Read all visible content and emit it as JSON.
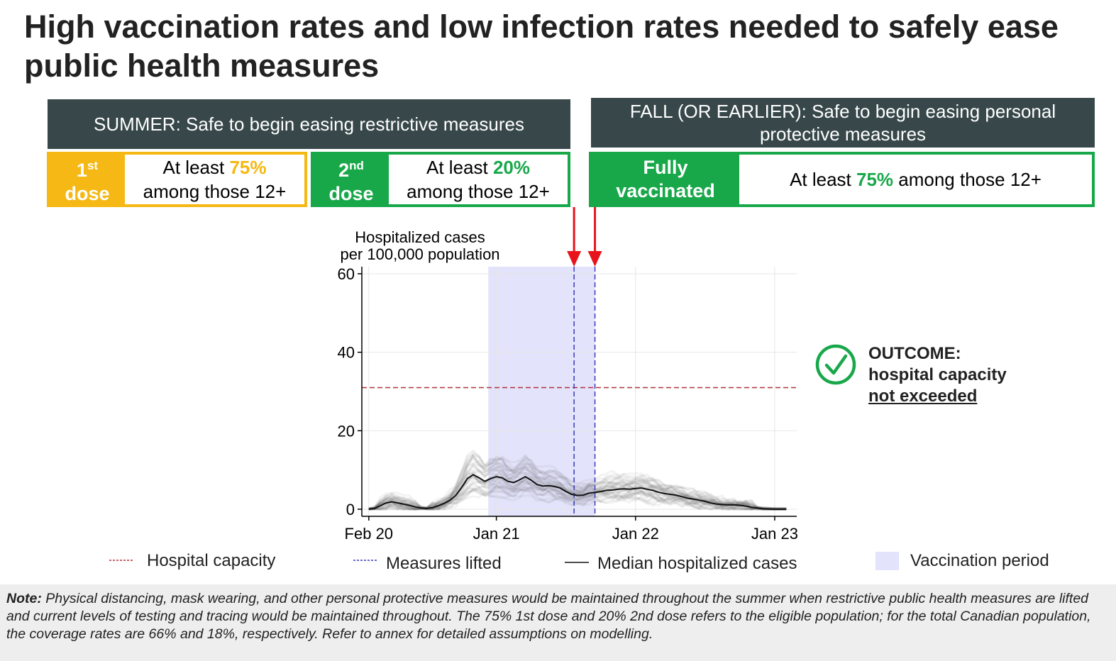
{
  "title": "High vaccination rates and low infection rates needed to safely ease public health measures",
  "summer_header": "SUMMER: Safe to begin easing restrictive measures",
  "fall_header": "FALL (OR EARLIER): Safe to begin easing personal protective measures",
  "box1": {
    "label_num": "1",
    "label_sup": "st",
    "label_word": "dose",
    "prefix": "At least ",
    "pct": "75%",
    "suffix": "among those 12+"
  },
  "box2": {
    "label_num": "2",
    "label_sup": "nd",
    "label_word": "dose",
    "prefix": "At least ",
    "pct": "20%",
    "suffix": "among those 12+"
  },
  "box3": {
    "label_line1": "Fully",
    "label_line2": "vaccinated",
    "prefix": "At least ",
    "pct": "75%",
    "suffix": " among those 12+"
  },
  "outcome": {
    "line1": "OUTCOME:",
    "line2": "hospital capacity",
    "line3": "not exceeded"
  },
  "legend": {
    "capacity": "Hospital capacity",
    "lifted": "Measures lifted",
    "median": "Median hospitalized cases",
    "vaccination": "Vaccination period"
  },
  "note": {
    "label": "Note:",
    "text": " Physical distancing, mask wearing, and other personal protective measures would be maintained throughout the summer when restrictive public health measures are lifted and current levels of testing and tracing would be maintained throughout. The 75% 1st dose and 20% 2nd dose refers to the eligible population; for the total Canadian population, the coverage rates are 66% and 18%, respectively. Refer to annex for detailed assumptions on modelling."
  },
  "colors": {
    "header_bg": "#37474a",
    "yellow": "#f5b814",
    "green": "#18a84a",
    "arrow": "#e8141c",
    "capacity_line": "#b0303a",
    "lifted_line": "#3a3ab8",
    "vaccination_fill": "#e3e3fb"
  },
  "chart_data": {
    "type": "line",
    "ylabel_line1": "Hospitalized cases",
    "ylabel_line2": "per 100,000 population",
    "ylim": [
      0,
      60
    ],
    "yticks": [
      0,
      20,
      40,
      60
    ],
    "xticks": [
      {
        "label": "Feb 20",
        "month": 0
      },
      {
        "label": "Jan 21",
        "month": 11
      },
      {
        "label": "Jan 22",
        "month": 23
      },
      {
        "label": "Jan 23",
        "month": 35
      }
    ],
    "x_months_range": [
      -0.6,
      36.9
    ],
    "grid": true,
    "hospital_capacity": 31,
    "measures_lifted_months": [
      17.7,
      19.5
    ],
    "vaccination_period_months": [
      10.3,
      19.5
    ],
    "median_series": {
      "name": "Median hospitalized cases",
      "months": [
        0,
        0.5,
        1,
        1.5,
        2,
        2.5,
        3,
        3.5,
        4,
        4.5,
        5,
        5.5,
        6,
        6.5,
        7,
        7.5,
        8,
        8.5,
        9,
        9.5,
        10,
        10.5,
        11,
        11.5,
        12,
        12.5,
        13,
        13.5,
        14,
        14.5,
        15,
        15.5,
        16,
        16.5,
        17,
        17.5,
        18,
        18.5,
        19,
        19.5,
        20,
        20.5,
        21,
        21.5,
        22,
        22.5,
        23,
        23.5,
        24,
        24.5,
        25,
        25.5,
        26,
        26.5,
        27,
        27.5,
        28,
        28.5,
        29,
        29.5,
        30,
        30.5,
        31,
        31.5,
        32,
        32.5,
        33,
        33.5,
        34,
        34.5,
        35,
        35.5,
        36
      ],
      "values": [
        0,
        0.2,
        0.9,
        1.6,
        1.9,
        1.6,
        1.3,
        1.0,
        0.6,
        0.3,
        0.2,
        0.4,
        0.9,
        1.5,
        2.3,
        3.5,
        5.5,
        7.8,
        8.8,
        8.0,
        7.1,
        7.8,
        8.3,
        8.0,
        7.1,
        6.8,
        7.5,
        8.3,
        7.4,
        6.3,
        5.9,
        6.0,
        5.8,
        5.4,
        4.5,
        3.8,
        3.5,
        3.6,
        4.1,
        4.3,
        4.5,
        4.8,
        4.9,
        5.1,
        5.2,
        5.1,
        5.3,
        5.4,
        5.1,
        4.8,
        4.3,
        4.0,
        3.8,
        3.6,
        3.2,
        2.8,
        2.6,
        2.3,
        2.0,
        1.6,
        1.3,
        1.2,
        1.1,
        1.1,
        1.0,
        0.8,
        0.5,
        0.3,
        0.1,
        0.05,
        0,
        0,
        0
      ]
    },
    "simulated_runs_count": 40
  }
}
